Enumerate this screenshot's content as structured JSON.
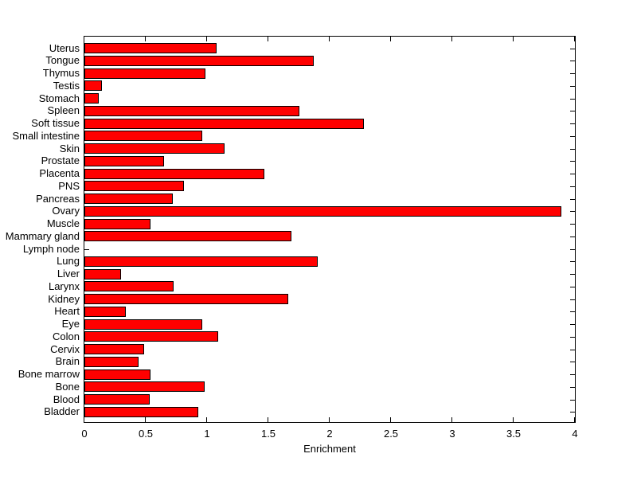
{
  "window": {
    "background": "#ffffff"
  },
  "chart_data": {
    "type": "bar",
    "orientation": "horizontal",
    "title": "",
    "xlabel": "Enrichment",
    "ylabel": "",
    "xlim": [
      0,
      4
    ],
    "xticks": [
      0,
      0.5,
      1,
      1.5,
      2,
      2.5,
      3,
      3.5,
      4
    ],
    "xtick_labels": [
      "0",
      "0.5",
      "1",
      "1.5",
      "2",
      "2.5",
      "3",
      "3.5",
      "4"
    ],
    "grid": false,
    "legend_position": "none",
    "bar_color": "#ff0000",
    "bar_edge_color": "#000000",
    "axis_color": "#000000",
    "categories": [
      "Uterus",
      "Tongue",
      "Thymus",
      "Testis",
      "Stomach",
      "Spleen",
      "Soft tissue",
      "Small intestine",
      "Skin",
      "Prostate",
      "Placenta",
      "PNS",
      "Pancreas",
      "Ovary",
      "Muscle",
      "Mammary gland",
      "Lymph node",
      "Lung",
      "Liver",
      "Larynx",
      "Kidney",
      "Heart",
      "Eye",
      "Colon",
      "Cervix",
      "Brain",
      "Bone marrow",
      "Bone",
      "Blood",
      "Bladder"
    ],
    "values": [
      1.08,
      1.87,
      0.99,
      0.14,
      0.12,
      1.75,
      2.28,
      0.96,
      1.14,
      0.65,
      1.47,
      0.81,
      0.72,
      3.89,
      0.54,
      1.69,
      0,
      1.9,
      0.3,
      0.73,
      1.66,
      0.34,
      0.96,
      1.09,
      0.49,
      0.44,
      0.54,
      0.98,
      0.53,
      0.93
    ]
  }
}
